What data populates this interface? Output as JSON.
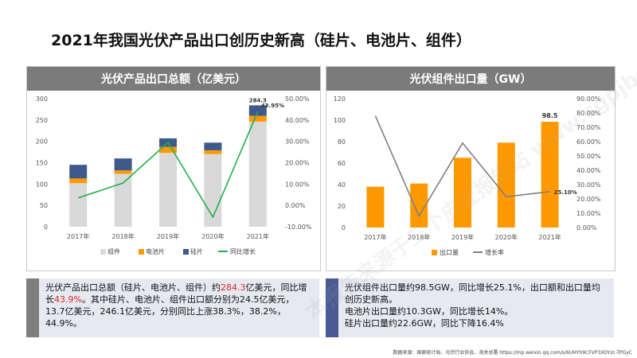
{
  "page": {
    "title": "2021年我国光伏产品出口创历史新高（硅片、电池片、组件）",
    "source": "数据来源：国家统计局、光伏行业协会、海关总署 https://mp.weixin.qq.com/s/6UHYh9CFVP3XDYzc-TPGyC",
    "watermark": "本报告来源于三个皮匠报告站 www.sgpjbg.com"
  },
  "colors": {
    "gray_bar": "#d9d9d9",
    "orange": "#ff9900",
    "blue": "#3d5a8a",
    "green": "#22b04a",
    "line_gray": "#7f7f7f",
    "header_bg": "#7b7b7b",
    "note_bg": "#e6e9f0",
    "note_bar_left": "#7f7f7f",
    "note_bar_right": "#4a5b94"
  },
  "chart_data": [
    {
      "type": "bar",
      "stacked": true,
      "title": "光伏产品出口总额（亿美元）",
      "categories": [
        "2017年",
        "2018年",
        "2019年",
        "2020年",
        "2021年"
      ],
      "series": [
        {
          "name": "组件",
          "axis": "left",
          "values": [
            102,
            124,
            173,
            170,
            246.1
          ]
        },
        {
          "name": "电池片",
          "axis": "left",
          "values": [
            11,
            8,
            14,
            9,
            13.7
          ]
        },
        {
          "name": "硅片",
          "axis": "left",
          "values": [
            32,
            28,
            20,
            18,
            24.5
          ]
        },
        {
          "name": "同比增长",
          "axis": "right",
          "type": "line",
          "values": [
            3.5,
            10.5,
            29.5,
            -5.5,
            43.95
          ]
        }
      ],
      "data_labels": [
        {
          "category": "2021年",
          "series": "total",
          "text": "284.3"
        },
        {
          "category": "2021年",
          "series": "同比增长",
          "text": "43.95%"
        }
      ],
      "left_axis": {
        "ylim": [
          0,
          300
        ],
        "ticks": [
          "0",
          "50",
          "100",
          "150",
          "200",
          "250",
          "300"
        ]
      },
      "right_axis": {
        "ylim": [
          -10,
          50
        ],
        "ticks": [
          "-10.00%",
          "0.00%",
          "10.00%",
          "20.00%",
          "30.00%",
          "40.00%",
          "50.00%"
        ]
      },
      "legend": {
        "placement": "bottom",
        "entries": [
          "组件",
          "电池片",
          "硅片",
          "同比增长"
        ]
      }
    },
    {
      "type": "bar",
      "title": "光伏组件出口量（GW）",
      "categories": [
        "2017年",
        "2018年",
        "2019年",
        "2020年",
        "2021年"
      ],
      "series": [
        {
          "name": "出口量",
          "axis": "left",
          "values": [
            38,
            41,
            65,
            79,
            98.5
          ]
        },
        {
          "name": "增长率",
          "axis": "right",
          "type": "line",
          "values": [
            78,
            8,
            59,
            21.5,
            25.1
          ]
        }
      ],
      "data_labels": [
        {
          "category": "2021年",
          "series": "出口量",
          "text": "98.5"
        },
        {
          "category": "2021年",
          "series": "增长率",
          "text": "25.10%"
        }
      ],
      "left_axis": {
        "ylim": [
          0,
          120
        ],
        "ticks": [
          "0",
          "20",
          "40",
          "60",
          "80",
          "100",
          "120"
        ]
      },
      "right_axis": {
        "ylim": [
          0,
          90
        ],
        "ticks": [
          "0.00%",
          "10.00%",
          "20.00%",
          "30.00%",
          "40.00%",
          "50.00%",
          "60.00%",
          "70.00%",
          "80.00%",
          "90.00%"
        ]
      },
      "legend": {
        "placement": "bottom",
        "entries": [
          "出口量",
          "增长率"
        ]
      }
    }
  ],
  "notes": {
    "left": {
      "p1": "光伏产品出口总额（硅片、电池片、组件）约",
      "v1": "284.3",
      "p2": "亿美元，同比增长",
      "v2": "43.9%",
      "p3": "。其中硅片、电池片、组件出口额分别为24.5亿美元，13.7亿美元，246.1亿美元，分别同比上涨38.3%，38.2%，44.9%。"
    },
    "right": {
      "line1": "光伏组件出口量约98.5GW，同比增长25.1%，出口额和出口量均创历史新高。",
      "line2": "电池片出口量约10.3GW，同比增长14%。",
      "line3": "硅片出口量约22.6GW，同比下降16.4%"
    }
  }
}
